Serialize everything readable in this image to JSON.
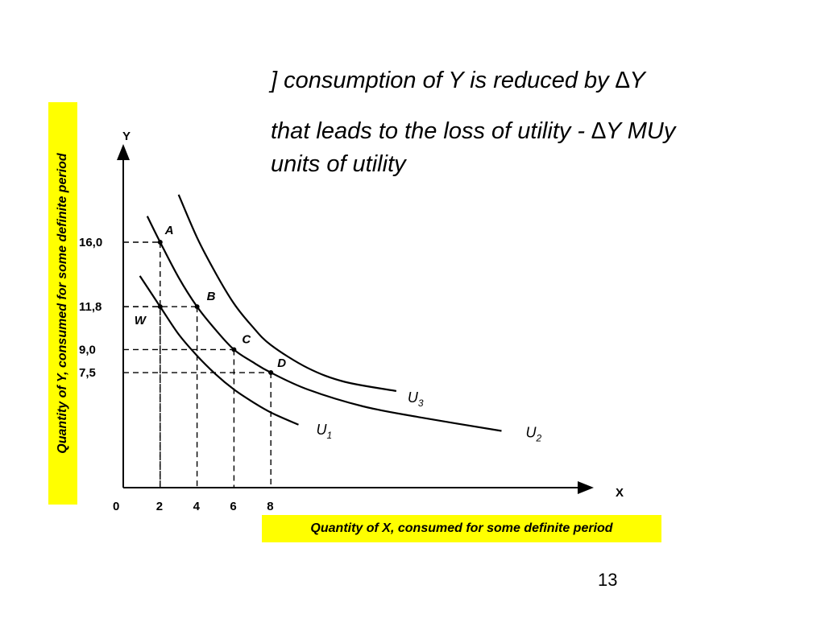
{
  "text": {
    "line1": "] consumption of Y is reduced by ∆Y",
    "line2": "that leads to the loss of utility - ∆Y MUy",
    "line3": "units of utility"
  },
  "y_axis_caption": "Quantity of Y, consumed  for some definite period",
  "x_axis_caption": "Quantity of X, consumed  for some  definite period",
  "page_number": "13",
  "chart_data": {
    "type": "line",
    "x_axis_letter": "X",
    "y_axis_letter": "Y",
    "origin_label": "0",
    "x_tick_labels": [
      "2",
      "4",
      "6",
      "8"
    ],
    "x_ticks": [
      2,
      4,
      6,
      8
    ],
    "y_tick_labels": [
      "16,0",
      "11,8",
      "9,0",
      "7,5"
    ],
    "y_ticks": [
      16.0,
      11.8,
      9.0,
      7.5
    ],
    "xlim": [
      0,
      25
    ],
    "ylim": [
      0,
      21
    ],
    "series": [
      {
        "name": "U1",
        "label_main": "U",
        "label_sub": "1",
        "x": [
          0.9,
          2,
          3,
          4,
          5,
          6,
          7,
          8,
          9.5
        ],
        "y": [
          13.8,
          11.8,
          10.0,
          8.6,
          7.4,
          6.4,
          5.6,
          4.9,
          4.1
        ]
      },
      {
        "name": "U2",
        "label_main": "U",
        "label_sub": "2",
        "x": [
          1.3,
          2,
          3,
          4,
          5,
          6,
          7,
          8,
          10,
          13,
          16,
          20.5
        ],
        "y": [
          17.7,
          16.0,
          13.7,
          11.8,
          10.3,
          9.0,
          8.2,
          7.5,
          6.4,
          5.3,
          4.6,
          3.7
        ]
      },
      {
        "name": "U3",
        "label_main": "U",
        "label_sub": "3",
        "x": [
          3.0,
          4,
          5,
          6,
          7,
          8,
          10,
          12,
          14.8
        ],
        "y": [
          19.1,
          16.3,
          14.0,
          12.0,
          10.5,
          9.3,
          7.8,
          6.9,
          6.3
        ]
      }
    ],
    "points": [
      {
        "name": "A",
        "x": 2,
        "y": 16.0
      },
      {
        "name": "B",
        "x": 4,
        "y": 11.8
      },
      {
        "name": "C",
        "x": 6,
        "y": 9.0
      },
      {
        "name": "D",
        "x": 8,
        "y": 7.5
      },
      {
        "name": "W",
        "x": 2,
        "y": 11.8
      }
    ]
  }
}
